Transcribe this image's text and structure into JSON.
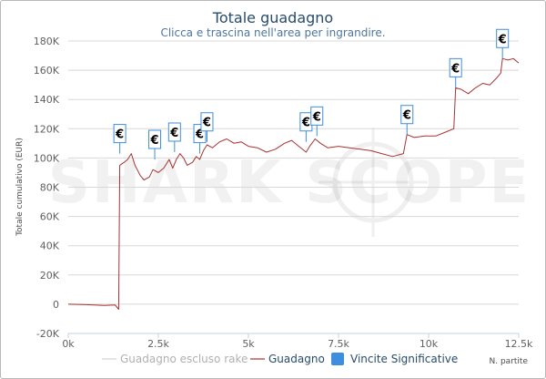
{
  "chart_data": {
    "type": "line",
    "title": "Totale guadagno",
    "subtitle": "Clicca e trascina nell'area per ingrandire.",
    "xlabel": "N. partite",
    "ylabel": "Totale cumulativo (EUR)",
    "xlim": [
      0,
      12500
    ],
    "ylim": [
      -20000,
      180000
    ],
    "x_ticks": [
      {
        "value": 0,
        "label": "0k"
      },
      {
        "value": 2500,
        "label": "2.5k"
      },
      {
        "value": 5000,
        "label": "5k"
      },
      {
        "value": 7500,
        "label": "7.5k"
      },
      {
        "value": 10000,
        "label": "10k"
      },
      {
        "value": 12500,
        "label": "12.5k"
      }
    ],
    "y_ticks": [
      {
        "value": -20000,
        "label": "-20K"
      },
      {
        "value": 0,
        "label": "0"
      },
      {
        "value": 20000,
        "label": "20K"
      },
      {
        "value": 40000,
        "label": "40K"
      },
      {
        "value": 60000,
        "label": "60K"
      },
      {
        "value": 80000,
        "label": "80K"
      },
      {
        "value": 100000,
        "label": "100K"
      },
      {
        "value": 120000,
        "label": "120K"
      },
      {
        "value": 140000,
        "label": "140K"
      },
      {
        "value": 160000,
        "label": "160K"
      },
      {
        "value": 180000,
        "label": "180K"
      }
    ],
    "grid": true,
    "legend_position": "bottom",
    "watermark": "SHARK SCOPE",
    "series": [
      {
        "name": "Guadagno escluso rake",
        "color": "#c8c8c8",
        "visible": false,
        "points": []
      },
      {
        "name": "Guadagno",
        "color": "#a83232",
        "points": [
          [
            0,
            0
          ],
          [
            500,
            -300
          ],
          [
            1000,
            -800
          ],
          [
            1300,
            -500
          ],
          [
            1400,
            -3500
          ],
          [
            1430,
            95000
          ],
          [
            1550,
            97000
          ],
          [
            1650,
            99000
          ],
          [
            1750,
            103000
          ],
          [
            1850,
            95000
          ],
          [
            2000,
            88000
          ],
          [
            2100,
            85000
          ],
          [
            2250,
            87000
          ],
          [
            2350,
            92000
          ],
          [
            2500,
            90000
          ],
          [
            2650,
            93000
          ],
          [
            2800,
            99000
          ],
          [
            2900,
            93000
          ],
          [
            3000,
            99000
          ],
          [
            3100,
            103000
          ],
          [
            3200,
            100000
          ],
          [
            3300,
            95000
          ],
          [
            3450,
            97000
          ],
          [
            3550,
            101000
          ],
          [
            3650,
            99000
          ],
          [
            3750,
            105000
          ],
          [
            3850,
            109000
          ],
          [
            4000,
            107000
          ],
          [
            4200,
            111000
          ],
          [
            4400,
            113000
          ],
          [
            4600,
            110000
          ],
          [
            4800,
            111000
          ],
          [
            5000,
            108000
          ],
          [
            5250,
            107000
          ],
          [
            5500,
            104000
          ],
          [
            5750,
            106000
          ],
          [
            6000,
            110000
          ],
          [
            6200,
            112000
          ],
          [
            6400,
            108000
          ],
          [
            6600,
            104000
          ],
          [
            6700,
            108000
          ],
          [
            6850,
            113000
          ],
          [
            7000,
            110000
          ],
          [
            7200,
            107000
          ],
          [
            7500,
            108000
          ],
          [
            7800,
            107000
          ],
          [
            8100,
            106000
          ],
          [
            8400,
            105000
          ],
          [
            8700,
            103000
          ],
          [
            9000,
            101000
          ],
          [
            9300,
            103000
          ],
          [
            9400,
            116000
          ],
          [
            9600,
            114000
          ],
          [
            9900,
            115000
          ],
          [
            10200,
            115000
          ],
          [
            10500,
            118000
          ],
          [
            10700,
            120000
          ],
          [
            10750,
            148000
          ],
          [
            10900,
            147000
          ],
          [
            11100,
            144000
          ],
          [
            11300,
            148000
          ],
          [
            11500,
            151000
          ],
          [
            11700,
            150000
          ],
          [
            11900,
            155000
          ],
          [
            12000,
            158000
          ],
          [
            12050,
            168000
          ],
          [
            12200,
            167000
          ],
          [
            12350,
            168000
          ],
          [
            12500,
            165000
          ]
        ]
      }
    ],
    "markers": {
      "name": "Vincite Significative",
      "symbol": "€",
      "color": "#3d8ede",
      "points": [
        [
          1430,
          103000
        ],
        [
          2400,
          99000
        ],
        [
          2950,
          104000
        ],
        [
          3650,
          103000
        ],
        [
          3850,
          111000
        ],
        [
          6600,
          111000
        ],
        [
          6900,
          115000
        ],
        [
          9400,
          116000
        ],
        [
          10750,
          148000
        ],
        [
          12050,
          168000
        ]
      ]
    }
  }
}
